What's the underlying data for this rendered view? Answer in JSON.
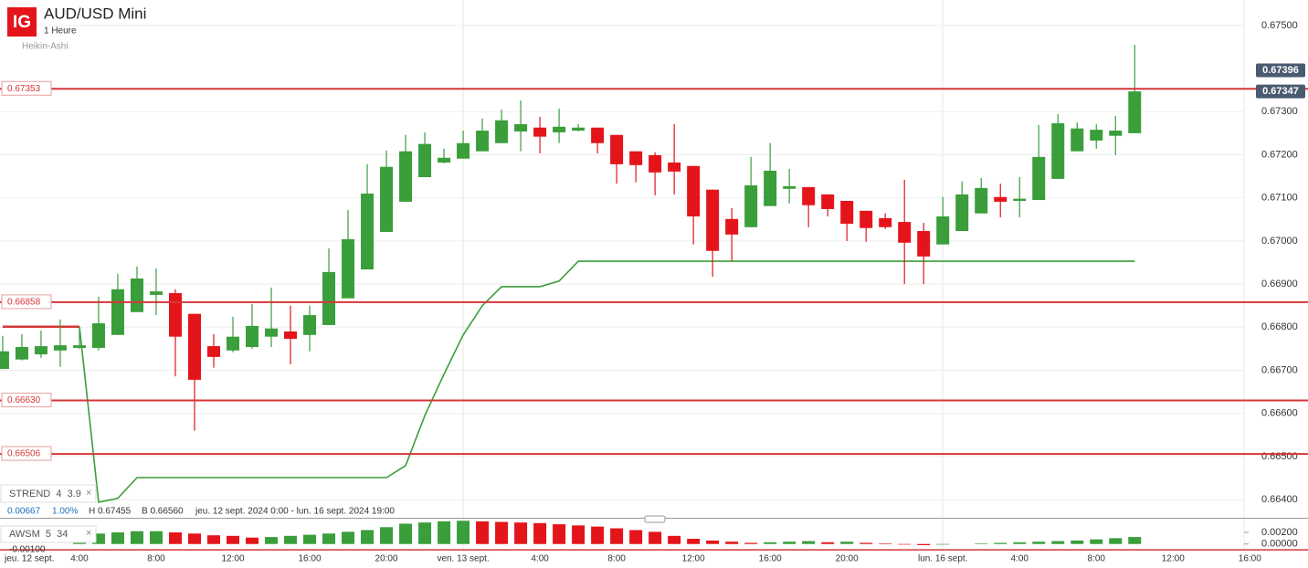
{
  "header": {
    "logo": "IG",
    "title": "AUD/USD Mini",
    "interval": "1 Heure",
    "style": "Heikin-Ashi"
  },
  "info": {
    "change": "0.00667",
    "change_pct": "1.00%",
    "high": "H 0.67455",
    "low": "B 0.66560",
    "range": "jeu. 12 sept. 2024 0:00 - lun. 16 sept. 2024 19:00"
  },
  "chart_data": [
    {
      "type": "candlestick",
      "categories": [
        "jeu. 12 sept.",
        null,
        null,
        null,
        "4:00",
        null,
        null,
        null,
        "8:00",
        null,
        null,
        null,
        "12:00",
        null,
        null,
        null,
        "16:00",
        null,
        null,
        null,
        "20:00",
        null,
        null,
        null,
        "ven. 13 sept.",
        null,
        null,
        null,
        "4:00",
        null,
        null,
        null,
        "8:00",
        null,
        null,
        null,
        "12:00",
        null,
        null,
        null,
        "16:00",
        null,
        null,
        null,
        "20:00",
        null,
        null,
        null,
        null,
        "lun. 16 sept.",
        null,
        null,
        null,
        "4:00",
        null,
        null,
        null,
        "8:00",
        null,
        null,
        null,
        "12:00",
        null,
        null,
        null,
        "16:00"
      ],
      "open": [
        0.66703,
        0.66725,
        0.66737,
        0.66746,
        0.66752,
        0.66752,
        0.66782,
        0.66835,
        0.66875,
        0.66879,
        0.66831,
        0.66756,
        0.66746,
        0.66754,
        0.66778,
        0.6679,
        0.66782,
        0.66805,
        0.66867,
        0.66934,
        0.67021,
        0.67091,
        0.67148,
        0.67182,
        0.67191,
        0.67208,
        0.67227,
        0.67254,
        0.67263,
        0.67252,
        0.67256,
        0.67263,
        0.67246,
        0.67208,
        0.67199,
        0.67182,
        0.67174,
        0.67119,
        0.67051,
        0.67032,
        0.67081,
        0.67121,
        0.67125,
        0.67108,
        0.67093,
        0.6707,
        0.67053,
        0.67044,
        0.67023,
        0.66992,
        0.67023,
        0.67064,
        0.67102,
        0.67093,
        0.67095,
        0.67144,
        0.67208,
        0.67233,
        0.67244,
        0.6725,
        null,
        null,
        null,
        null,
        null,
        null
      ],
      "high": [
        0.6678,
        0.66784,
        0.66792,
        0.66818,
        0.66796,
        0.66871,
        0.66924,
        0.66941,
        0.66936,
        0.66888,
        0.66831,
        0.66784,
        0.66824,
        0.66854,
        0.66892,
        0.6685,
        0.6685,
        0.66983,
        0.67072,
        0.67178,
        0.6721,
        0.67246,
        0.67252,
        0.67214,
        0.67256,
        0.67284,
        0.67305,
        0.67326,
        0.67288,
        0.67307,
        0.67271,
        0.67263,
        0.67246,
        0.67208,
        0.67206,
        0.67271,
        0.67174,
        0.67119,
        0.67076,
        0.67195,
        0.67227,
        0.67167,
        0.67125,
        0.67108,
        0.67093,
        0.6707,
        0.67064,
        0.67142,
        0.67042,
        0.67102,
        0.67138,
        0.67146,
        0.67133,
        0.67148,
        0.67269,
        0.67294,
        0.67275,
        0.67271,
        0.6729,
        0.67455,
        null,
        null,
        null,
        null,
        null,
        null
      ],
      "low": [
        0.66703,
        0.66723,
        0.66729,
        0.66708,
        0.6675,
        0.66746,
        0.66782,
        0.66835,
        0.66828,
        0.66686,
        0.6656,
        0.66706,
        0.66742,
        0.6675,
        0.66754,
        0.66714,
        0.66744,
        0.66805,
        0.66867,
        0.66934,
        0.67021,
        0.67091,
        0.67148,
        0.6718,
        0.67191,
        0.67208,
        0.67227,
        0.67208,
        0.67203,
        0.67227,
        0.67254,
        0.67203,
        0.67133,
        0.67136,
        0.67106,
        0.67108,
        0.66992,
        0.66917,
        0.66953,
        0.67032,
        0.67081,
        0.67087,
        0.67032,
        0.67057,
        0.67,
        0.66998,
        0.67028,
        0.669,
        0.669,
        0.66992,
        0.67023,
        0.67064,
        0.67055,
        0.67055,
        0.67095,
        0.67144,
        0.67208,
        0.67214,
        0.67199,
        0.6725,
        null,
        null,
        null,
        null,
        null,
        null
      ],
      "close": [
        0.66744,
        0.66754,
        0.66756,
        0.66758,
        0.66758,
        0.66809,
        0.66888,
        0.66913,
        0.66883,
        0.66778,
        0.66678,
        0.66731,
        0.66778,
        0.66803,
        0.66797,
        0.66773,
        0.66828,
        0.66928,
        0.67004,
        0.6711,
        0.67172,
        0.67208,
        0.67225,
        0.67193,
        0.67227,
        0.67256,
        0.6728,
        0.67271,
        0.67242,
        0.67265,
        0.67263,
        0.67227,
        0.67178,
        0.67176,
        0.67159,
        0.67161,
        0.67057,
        0.66977,
        0.67015,
        0.67129,
        0.67163,
        0.67127,
        0.67083,
        0.67074,
        0.6704,
        0.6703,
        0.67032,
        0.66996,
        0.66964,
        0.67057,
        0.67108,
        0.67123,
        0.67091,
        0.67098,
        0.67195,
        0.67273,
        0.67261,
        0.67258,
        0.67256,
        0.67347,
        null,
        null,
        null,
        null,
        null,
        null
      ],
      "up_color": "#3a9e3a",
      "down_color": "#e3151a",
      "xlim": [
        -0.14,
        64.7
      ],
      "ylim": [
        0.6636,
        0.67559
      ],
      "yticks": [
        {
          "value": 0.675,
          "label": "0.67500"
        },
        {
          "value": 0.673,
          "label": "0.67300"
        },
        {
          "value": 0.672,
          "label": "0.67200"
        },
        {
          "value": 0.671,
          "label": "0.67100"
        },
        {
          "value": 0.67,
          "label": "0.67000"
        },
        {
          "value": 0.669,
          "label": "0.66900"
        },
        {
          "value": 0.668,
          "label": "0.66800"
        },
        {
          "value": 0.667,
          "label": "0.66700"
        },
        {
          "value": 0.666,
          "label": "0.66600"
        },
        {
          "value": 0.665,
          "label": "0.66500"
        },
        {
          "value": 0.664,
          "label": "0.66400"
        }
      ],
      "grid": true,
      "level_color": "#d63638",
      "levels": [
        {
          "value": 0.67353,
          "label": "0.67353"
        },
        {
          "value": 0.66858,
          "label": "0.66858"
        },
        {
          "value": 0.6663,
          "label": "0.66630"
        },
        {
          "value": 0.66506,
          "label": "0.66506"
        }
      ],
      "price_tags": [
        {
          "value": 0.67396,
          "label": "0.67396"
        },
        {
          "value": 0.67347,
          "label": "0.67347"
        }
      ],
      "indicator": "STREND  4  3.9",
      "supertrend": [
        {
          "color": "#d63638",
          "values": [
            0.66801,
            0.66801,
            0.66801,
            0.66801,
            0.66801,
            null,
            null,
            null,
            null,
            null,
            null,
            null,
            null,
            null,
            null,
            null,
            null,
            null,
            null,
            null,
            null,
            null,
            null,
            null,
            null,
            null,
            null,
            null,
            null,
            null,
            null,
            null,
            null,
            null,
            null,
            null,
            null,
            null,
            null,
            null,
            null,
            null,
            null,
            null,
            null,
            null,
            null,
            null,
            null,
            null,
            null,
            null,
            null,
            null,
            null,
            null,
            null,
            null,
            null,
            null,
            null,
            null,
            null,
            null,
            null,
            null
          ]
        },
        {
          "color": "#3a9e3a",
          "values": [
            null,
            null,
            null,
            null,
            0.66801,
            0.66394,
            0.66403,
            0.66451,
            0.66451,
            0.66451,
            0.66451,
            0.66451,
            0.66451,
            0.66451,
            0.66451,
            0.66451,
            0.66451,
            0.66451,
            0.66451,
            0.66451,
            0.66451,
            0.66479,
            0.66595,
            0.66691,
            0.66782,
            0.6685,
            0.66894,
            0.66894,
            0.66894,
            0.66907,
            0.66953,
            0.66953,
            0.66953,
            0.66953,
            0.66953,
            0.66953,
            0.66953,
            0.66953,
            0.66953,
            0.66953,
            0.66953,
            0.66953,
            0.66953,
            0.66953,
            0.66953,
            0.66953,
            0.66953,
            0.66953,
            0.66953,
            0.66953,
            0.66953,
            0.66953,
            0.66953,
            0.66953,
            0.66953,
            0.66953,
            0.66953,
            0.66953,
            0.66953,
            0.66953,
            null,
            null,
            null,
            null,
            null,
            null
          ]
        }
      ]
    },
    {
      "type": "bar",
      "indicator": "AWSM  5  34",
      "values": [
        null,
        null,
        null,
        null,
        0.0015,
        0.0018,
        0.002,
        0.0022,
        0.0022,
        0.002,
        0.0018,
        0.0015,
        0.0014,
        0.0011,
        0.0012,
        0.0014,
        0.0016,
        0.0018,
        0.0021,
        0.0024,
        0.0029,
        0.0035,
        0.0037,
        0.0039,
        0.004,
        0.0039,
        0.0038,
        0.0037,
        0.0036,
        0.0034,
        0.0032,
        0.003,
        0.0027,
        0.0024,
        0.0021,
        0.0014,
        0.0009,
        0.0006,
        0.0004,
        0.0002,
        0.0003,
        0.0004,
        0.0005,
        0.0003,
        0.0004,
        0.0002,
        0.0001,
        -0.0001,
        -0.0002,
        -0.0001,
        0,
        0.0001,
        0.0002,
        0.0003,
        0.0004,
        0.0005,
        0.0006,
        0.0008,
        0.001,
        0.0012,
        null,
        null,
        null,
        null,
        null,
        null
      ],
      "up_color": "#3a9e3a",
      "down_color": "#e3151a",
      "ylim": [
        -0.0013,
        0.0042
      ],
      "yticks": [
        {
          "value": 0.002,
          "label": "0.00200"
        },
        {
          "value": 0,
          "label": "0.00000"
        },
        {
          "value": -0.001,
          "label": "-0.00100"
        }
      ]
    }
  ]
}
